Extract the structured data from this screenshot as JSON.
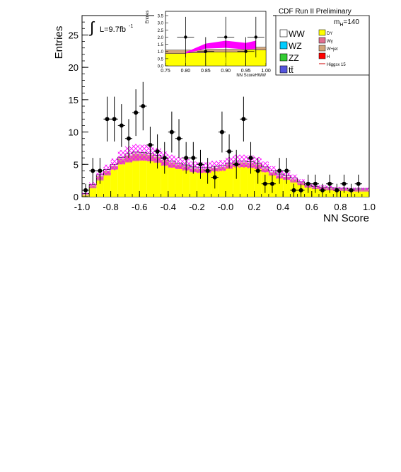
{
  "header": {
    "title": "CDF Run II Preliminary",
    "mass_label": "m",
    "mass_sub": "H",
    "mass_value": "=140"
  },
  "luminosity": {
    "symbol": "∫",
    "text": "L=9.7fb",
    "exponent": "-1"
  },
  "legend": {
    "left": [
      {
        "label": "WW",
        "color": "#ffffff"
      },
      {
        "label": "WZ",
        "color": "#00ccff"
      },
      {
        "label": "ZZ",
        "color": "#33cc33"
      },
      {
        "label": "tt̄",
        "color": "#5555dd"
      }
    ],
    "right": [
      {
        "label": "DY",
        "color": "#ffff00"
      },
      {
        "label": "Wγ",
        "color": "#e07090"
      },
      {
        "label": "W+jet",
        "color": "#d2a57a"
      },
      {
        "label": "H",
        "color": "#ff0000"
      },
      {
        "label": "Higgsx 15",
        "color": "#cc0000",
        "line": true
      }
    ]
  },
  "chart_data": [
    {
      "type": "bar",
      "subtype": "stacked histogram with data points",
      "xlabel": "NN Score",
      "ylabel": "Entries",
      "xlim": [
        -1.0,
        1.0
      ],
      "ylim": [
        0,
        28
      ],
      "x_ticks": [
        "-1.0",
        "-0.8",
        "-0.6",
        "-0.4",
        "-0.2",
        "-0.0",
        "0.2",
        "0.4",
        "0.6",
        "0.8",
        "1.0"
      ],
      "y_ticks": [
        "0",
        "5",
        "10",
        "15",
        "20",
        "25"
      ],
      "bin_edges": [
        -1.0,
        -0.95,
        -0.9,
        -0.85,
        -0.8,
        -0.75,
        -0.7,
        -0.65,
        -0.6,
        -0.55,
        -0.5,
        -0.45,
        -0.4,
        -0.35,
        -0.3,
        -0.25,
        -0.2,
        -0.15,
        -0.1,
        -0.05,
        0.0,
        0.05,
        0.1,
        0.15,
        0.2,
        0.25,
        0.3,
        0.35,
        0.4,
        0.45,
        0.5,
        0.55,
        0.6,
        0.65,
        0.7,
        0.75,
        0.8,
        0.85,
        0.9,
        0.95,
        1.0
      ],
      "series": [
        {
          "name": "DY",
          "color": "#ffff00",
          "values": [
            0.2,
            1.3,
            2.5,
            3.3,
            4.2,
            5.0,
            5.3,
            5.5,
            5.6,
            5.5,
            5.3,
            4.8,
            4.5,
            4.3,
            4.1,
            3.8,
            3.7,
            3.8,
            4.0,
            4.1,
            4.5,
            4.7,
            4.6,
            4.5,
            4.3,
            3.8,
            3.3,
            2.8,
            2.6,
            2.2,
            1.8,
            1.4,
            1.2,
            1.1,
            1.0,
            0.9,
            0.9,
            0.8,
            0.8,
            0.8
          ]
        },
        {
          "name": "Wγ",
          "color": "#e07090",
          "values": [
            0.1,
            0.3,
            0.5,
            0.5,
            0.4,
            0.6,
            0.8,
            0.9,
            0.7,
            0.7,
            0.6,
            0.6,
            0.5,
            0.5,
            0.4,
            0.4,
            0.4,
            0.3,
            0.3,
            0.3,
            0.3,
            0.4,
            0.4,
            0.4,
            0.4,
            0.4,
            0.3,
            0.3,
            0.3,
            0.3,
            0.2,
            0.2,
            0.2,
            0.2,
            0.2,
            0.2,
            0.2,
            0.2,
            0.2,
            0.2
          ]
        },
        {
          "name": "W+jet",
          "color": "#d2a57a",
          "values": [
            0.1,
            0.2,
            0.2,
            0.2,
            0.2,
            0.3,
            0.3,
            0.3,
            0.3,
            0.3,
            0.3,
            0.3,
            0.3,
            0.2,
            0.2,
            0.2,
            0.2,
            0.2,
            0.2,
            0.2,
            0.2,
            0.2,
            0.3,
            0.3,
            0.3,
            0.2,
            0.2,
            0.2,
            0.2,
            0.2,
            0.2,
            0.1,
            0.1,
            0.1,
            0.1,
            0.1,
            0.1,
            0.1,
            0.1,
            0.1
          ]
        },
        {
          "name": "WW",
          "color": "#ffffff",
          "values": [
            0.1,
            0.1,
            0.2,
            0.2,
            0.2,
            0.2,
            0.2,
            0.2,
            0.2,
            0.2,
            0.2,
            0.2,
            0.2,
            0.2,
            0.2,
            0.2,
            0.2,
            0.2,
            0.2,
            0.2,
            0.2,
            0.2,
            0.2,
            0.2,
            0.2,
            0.2,
            0.2,
            0.2,
            0.2,
            0.2,
            0.1,
            0.1,
            0.1,
            0.1,
            0.1,
            0.1,
            0.1,
            0.1,
            0.1,
            0.1
          ]
        }
      ],
      "uncertainty_band": {
        "color": "#ff00ff",
        "relative": 0.18
      },
      "data_points": {
        "x": [
          -0.975,
          -0.925,
          -0.875,
          -0.825,
          -0.775,
          -0.725,
          -0.675,
          -0.625,
          -0.575,
          -0.525,
          -0.475,
          -0.425,
          -0.375,
          -0.325,
          -0.275,
          -0.225,
          -0.175,
          -0.125,
          -0.075,
          -0.025,
          0.025,
          0.075,
          0.125,
          0.175,
          0.225,
          0.275,
          0.325,
          0.375,
          0.425,
          0.475,
          0.525,
          0.575,
          0.625,
          0.675,
          0.725,
          0.775,
          0.825,
          0.875,
          0.925,
          0.975
        ],
        "y": [
          1,
          4,
          4,
          12,
          12,
          11,
          9,
          13,
          14,
          8,
          7,
          6,
          10,
          9,
          6,
          6,
          5,
          4,
          3,
          10,
          7,
          5,
          12,
          6,
          4,
          2,
          2,
          4,
          4,
          1,
          1,
          2,
          2,
          1,
          2,
          1,
          2,
          1,
          2,
          0
        ]
      }
    },
    {
      "type": "bar",
      "subtype": "inset stacked histogram",
      "xlabel": "NN ScoreHWW",
      "ylabel": "Entries",
      "xlim": [
        0.75,
        1.0
      ],
      "ylim": [
        0,
        3.8
      ],
      "x_ticks": [
        "0.75",
        "0.80",
        "0.85",
        "0.90",
        "0.95",
        "1.00"
      ],
      "y_ticks": [
        "0.0",
        "0.5",
        "1.0",
        "1.5",
        "2.0",
        "2.5",
        "3.0",
        "3.5"
      ],
      "bin_edges": [
        0.75,
        0.8,
        0.85,
        0.9,
        0.95,
        1.0
      ],
      "series": [
        {
          "name": "DY",
          "color": "#ffff00",
          "values": [
            0.85,
            0.9,
            0.95,
            0.95,
            1.1
          ]
        },
        {
          "name": "W+jet",
          "color": "#d2a57a",
          "values": [
            0.25,
            0.2,
            0.2,
            0.2,
            0.2
          ]
        }
      ],
      "higgs_band": {
        "x": [
          0.8,
          0.85,
          0.9,
          0.95,
          0.975
        ],
        "low": [
          0.85,
          1.2,
          1.25,
          1.15,
          1.2
        ],
        "high": [
          0.95,
          1.55,
          1.75,
          1.6,
          1.75
        ]
      },
      "data_points": {
        "x": [
          0.8,
          0.85,
          0.9,
          0.95,
          0.975
        ],
        "y": [
          2,
          1,
          2,
          1,
          2
        ]
      }
    }
  ]
}
